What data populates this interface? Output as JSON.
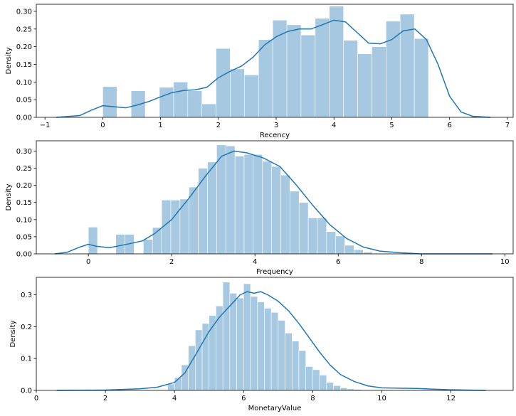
{
  "chart_data": [
    {
      "type": "bar",
      "subtype": "histogram-with-kde",
      "xlabel": "Recency",
      "ylabel": "Density",
      "xlim": [
        -1.15,
        7.1
      ],
      "ylim": [
        0,
        0.32
      ],
      "xticks": [
        -1,
        0,
        1,
        2,
        3,
        4,
        5,
        6,
        7
      ],
      "yticks": [
        0.0,
        0.05,
        0.1,
        0.15,
        0.2,
        0.25,
        0.3
      ],
      "ytick_labels": [
        "0.00",
        "0.05",
        "0.10",
        "0.15",
        "0.20",
        "0.25",
        "0.30"
      ],
      "bin_edges": [
        0,
        0.245,
        0.49,
        0.735,
        0.98,
        1.225,
        1.47,
        1.715,
        1.96,
        2.205,
        2.45,
        2.695,
        2.94,
        3.185,
        3.43,
        3.675,
        3.92,
        4.165,
        4.41,
        4.655,
        4.9,
        5.145,
        5.39,
        5.635,
        5.88
      ],
      "values": [
        0.087,
        0,
        0.075,
        0,
        0.085,
        0.1,
        0.075,
        0.038,
        0.195,
        0.137,
        0.12,
        0.22,
        0.275,
        0.262,
        0.233,
        0.28,
        0.315,
        0.218,
        0.18,
        0.2,
        0.272,
        0.292,
        0.223,
        0
      ],
      "kde": {
        "x": [
          -0.8,
          -0.4,
          -0.2,
          0,
          0.2,
          0.4,
          0.6,
          0.8,
          1.0,
          1.2,
          1.4,
          1.6,
          1.8,
          2.0,
          2.2,
          2.4,
          2.6,
          2.8,
          3.0,
          3.2,
          3.4,
          3.6,
          3.8,
          4.0,
          4.2,
          4.4,
          4.6,
          4.8,
          5.0,
          5.2,
          5.4,
          5.6,
          5.8,
          6.0,
          6.2,
          6.4,
          6.7
        ],
        "y": [
          0.0,
          0.005,
          0.02,
          0.033,
          0.03,
          0.027,
          0.035,
          0.045,
          0.058,
          0.07,
          0.076,
          0.078,
          0.085,
          0.112,
          0.13,
          0.145,
          0.17,
          0.205,
          0.228,
          0.243,
          0.25,
          0.25,
          0.262,
          0.275,
          0.27,
          0.24,
          0.21,
          0.208,
          0.22,
          0.245,
          0.25,
          0.22,
          0.15,
          0.06,
          0.015,
          0.003,
          0.0
        ]
      }
    },
    {
      "type": "bar",
      "subtype": "histogram-with-kde",
      "xlabel": "Frequency",
      "ylabel": "Density",
      "xlim": [
        -1.25,
        10.2
      ],
      "ylim": [
        0,
        0.33
      ],
      "xticks": [
        0,
        2,
        4,
        6,
        8,
        10
      ],
      "yticks": [
        0.0,
        0.05,
        0.1,
        0.15,
        0.2,
        0.25,
        0.3
      ],
      "ytick_labels": [
        "0.00",
        "0.05",
        "0.10",
        "0.15",
        "0.20",
        "0.25",
        "0.30"
      ],
      "bin_edges": [
        0,
        0.22,
        0.44,
        0.66,
        0.88,
        1.1,
        1.32,
        1.54,
        1.76,
        1.98,
        2.2,
        2.42,
        2.64,
        2.86,
        3.08,
        3.3,
        3.52,
        3.74,
        3.96,
        4.18,
        4.4,
        4.62,
        4.84,
        5.06,
        5.28,
        5.5,
        5.72,
        5.94,
        6.16,
        6.38,
        6.6,
        6.82
      ],
      "values": [
        0.078,
        0,
        0,
        0.057,
        0.057,
        0,
        0.042,
        0.077,
        0.157,
        0.157,
        0.16,
        0.195,
        0.25,
        0.268,
        0.318,
        0.315,
        0.285,
        0.29,
        0.29,
        0.27,
        0.255,
        0.23,
        0.183,
        0.15,
        0.105,
        0.105,
        0.065,
        0.052,
        0.025,
        0.012,
        0.005
      ],
      "kde": {
        "x": [
          -0.8,
          -0.5,
          -0.2,
          0,
          0.2,
          0.5,
          0.8,
          1.0,
          1.3,
          1.6,
          2.0,
          2.4,
          2.8,
          3.2,
          3.5,
          3.8,
          4.2,
          4.6,
          5.0,
          5.4,
          5.8,
          6.2,
          6.6,
          7.0,
          7.5,
          8.0,
          9.0,
          9.7
        ],
        "y": [
          0.0,
          0.005,
          0.02,
          0.028,
          0.022,
          0.018,
          0.025,
          0.03,
          0.038,
          0.06,
          0.1,
          0.16,
          0.225,
          0.285,
          0.3,
          0.295,
          0.28,
          0.255,
          0.2,
          0.14,
          0.085,
          0.045,
          0.02,
          0.008,
          0.003,
          0.0,
          0.0,
          0.0
        ]
      }
    },
    {
      "type": "bar",
      "subtype": "histogram-with-kde",
      "xlabel": "MonetaryValue",
      "ylabel": "Density",
      "xlim": [
        0,
        13.8
      ],
      "ylim": [
        0,
        0.355
      ],
      "xticks": [
        0,
        2,
        4,
        6,
        8,
        10,
        12
      ],
      "yticks": [
        0.0,
        0.1,
        0.2,
        0.3
      ],
      "ytick_labels": [
        "0.0",
        "0.1",
        "0.2",
        "0.3"
      ],
      "bin_edges": [
        3.8,
        4.0,
        4.2,
        4.4,
        4.6,
        4.8,
        5.0,
        5.2,
        5.4,
        5.6,
        5.8,
        6.0,
        6.2,
        6.4,
        6.6,
        6.8,
        7.0,
        7.2,
        7.4,
        7.6,
        7.8,
        8.0,
        8.2,
        8.4,
        8.6,
        8.8,
        9.0,
        9.2,
        9.4
      ],
      "values": [
        0.02,
        0.04,
        0.08,
        0.14,
        0.19,
        0.21,
        0.235,
        0.265,
        0.34,
        0.305,
        0.29,
        0.335,
        0.295,
        0.278,
        0.258,
        0.245,
        0.22,
        0.18,
        0.155,
        0.125,
        0.075,
        0.065,
        0.048,
        0.025,
        0.015,
        0.008,
        0.005,
        0.003
      ],
      "kde": {
        "x": [
          0.6,
          2.0,
          3.0,
          3.5,
          4.0,
          4.3,
          4.6,
          5.0,
          5.3,
          5.6,
          5.9,
          6.1,
          6.3,
          6.5,
          6.7,
          7.0,
          7.3,
          7.6,
          7.9,
          8.2,
          8.5,
          8.8,
          9.2,
          9.6,
          10.0,
          10.5,
          11.0,
          11.5,
          12.0,
          13.0
        ],
        "y": [
          0.0,
          0.001,
          0.005,
          0.01,
          0.025,
          0.055,
          0.11,
          0.185,
          0.23,
          0.265,
          0.3,
          0.31,
          0.305,
          0.31,
          0.3,
          0.28,
          0.25,
          0.21,
          0.165,
          0.12,
          0.08,
          0.05,
          0.028,
          0.014,
          0.008,
          0.007,
          0.006,
          0.004,
          0.002,
          0.0
        ]
      }
    }
  ],
  "colors": {
    "bar_fill": "#a6c8e0",
    "kde_line": "#1f77b4",
    "axis": "#000000"
  }
}
